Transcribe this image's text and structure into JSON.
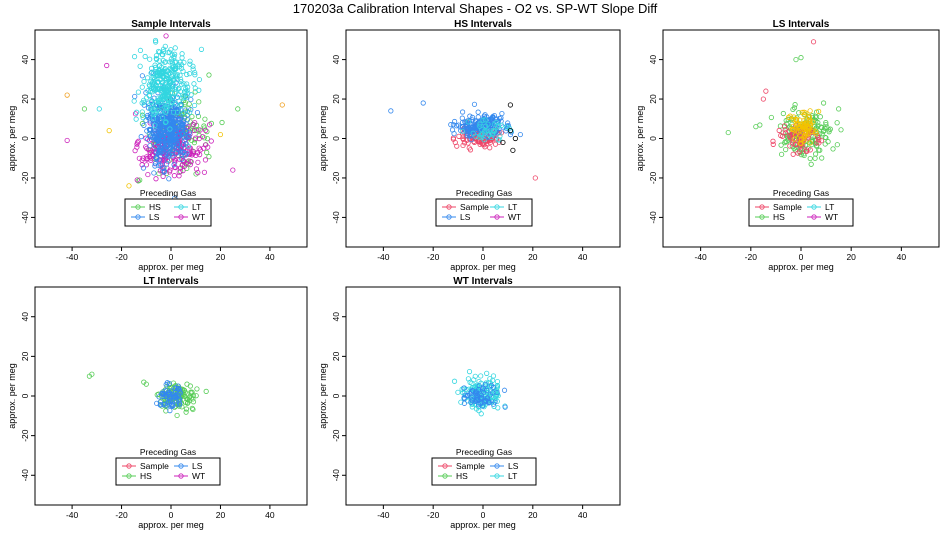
{
  "figure": {
    "title": "170203a   Calibration Interval Shapes - O2 vs. SP-WT Slope Diff"
  },
  "colors": {
    "Sample": "#ee4466",
    "HS": "#55cc55",
    "LS": "#3388ee",
    "LT": "#33d6e0",
    "WT": "#cc22bb",
    "other_yellow": "#f2c200",
    "other_orange": "#f0a020",
    "other_black": "#000000"
  },
  "chart_data": [
    {
      "type": "scatter",
      "title": "Sample Intervals",
      "xlabel": "approx. per meg",
      "ylabel": "approx. per meg",
      "xlim": [
        -55,
        55
      ],
      "ylim": [
        -55,
        55
      ],
      "xticks": [
        -40,
        -20,
        0,
        20,
        40
      ],
      "yticks": [
        -40,
        -20,
        0,
        20,
        40
      ],
      "legend": {
        "title": "Preceding Gas",
        "entries": [
          "HS",
          "LT",
          "LS",
          "WT"
        ]
      },
      "series": [
        {
          "name": "HS",
          "color": "#55cc55",
          "cluster": {
            "center": [
              3,
              2
            ],
            "spread": [
              6,
              9
            ],
            "n": 160
          }
        },
        {
          "name": "WT",
          "color": "#cc22bb",
          "cluster": {
            "center": [
              0,
              -5
            ],
            "spread": [
              7,
              7
            ],
            "n": 230
          }
        },
        {
          "name": "LS",
          "color": "#3388ee",
          "cluster": {
            "center": [
              -2,
              5
            ],
            "spread": [
              4,
              9
            ],
            "n": 420
          }
        },
        {
          "name": "LT",
          "color": "#33d6e0",
          "cluster": {
            "center": [
              -2,
              27
            ],
            "spread": [
              5,
              9
            ],
            "n": 300
          }
        }
      ],
      "extra_points": [
        {
          "x": -42,
          "y": 22,
          "color": "#f0a020"
        },
        {
          "x": 45,
          "y": 17,
          "color": "#f0a020"
        },
        {
          "x": -42,
          "y": -1,
          "color": "#cc22bb"
        },
        {
          "x": -26,
          "y": 37,
          "color": "#cc22bb"
        },
        {
          "x": -35,
          "y": 15,
          "color": "#55cc55"
        },
        {
          "x": -29,
          "y": 15,
          "color": "#33d6e0"
        },
        {
          "x": -17,
          "y": -24,
          "color": "#f2c200"
        },
        {
          "x": 25,
          "y": -16,
          "color": "#cc22bb"
        },
        {
          "x": 27,
          "y": 15,
          "color": "#55cc55"
        },
        {
          "x": -25,
          "y": 4,
          "color": "#f2c200"
        },
        {
          "x": 20,
          "y": 2,
          "color": "#f2c200"
        },
        {
          "x": -10,
          "y": -37,
          "color": "#f2c200"
        },
        {
          "x": -2,
          "y": 52,
          "color": "#cc22bb"
        }
      ]
    },
    {
      "type": "scatter",
      "title": "HS Intervals",
      "xlabel": "approx. per meg",
      "ylabel": "approx. per meg",
      "xlim": [
        -55,
        55
      ],
      "ylim": [
        -55,
        55
      ],
      "xticks": [
        -40,
        -20,
        0,
        20,
        40
      ],
      "yticks": [
        -40,
        -20,
        0,
        20,
        40
      ],
      "legend": {
        "title": "Preceding Gas",
        "entries": [
          "Sample",
          "LT",
          "LS",
          "WT"
        ]
      },
      "series": [
        {
          "name": "Sample",
          "color": "#ee4466",
          "cluster": {
            "center": [
              -2,
              1
            ],
            "spread": [
              5,
              3
            ],
            "n": 120
          }
        },
        {
          "name": "LS",
          "color": "#3388ee",
          "cluster": {
            "center": [
              0,
              6
            ],
            "spread": [
              5,
              3
            ],
            "n": 170
          }
        },
        {
          "name": "LT",
          "color": "#33d6e0",
          "cluster": {
            "center": [
              2,
              4
            ],
            "spread": [
              5,
              4
            ],
            "n": 40
          }
        }
      ],
      "extra_points": [
        {
          "x": -37,
          "y": 14,
          "color": "#3388ee"
        },
        {
          "x": -24,
          "y": 18,
          "color": "#3388ee"
        },
        {
          "x": 11,
          "y": 17,
          "color": "#000000"
        },
        {
          "x": 11,
          "y": 4,
          "color": "#000000"
        },
        {
          "x": 8,
          "y": -2,
          "color": "#000000"
        },
        {
          "x": 12,
          "y": -6,
          "color": "#000000"
        },
        {
          "x": 13,
          "y": 0,
          "color": "#000000"
        },
        {
          "x": 21,
          "y": -20,
          "color": "#ee4466"
        },
        {
          "x": 15,
          "y": 2,
          "color": "#3388ee"
        }
      ]
    },
    {
      "type": "scatter",
      "title": "LS Intervals",
      "xlabel": "approx. per meg",
      "ylabel": "approx. per meg",
      "xlim": [
        -55,
        55
      ],
      "ylim": [
        -55,
        55
      ],
      "xticks": [
        -40,
        -20,
        0,
        20,
        40
      ],
      "yticks": [
        -40,
        -20,
        0,
        20,
        40
      ],
      "legend": {
        "title": "Preceding Gas",
        "entries": [
          "Sample",
          "LT",
          "HS",
          "WT"
        ]
      },
      "series": [
        {
          "name": "HS",
          "color": "#55cc55",
          "cluster": {
            "center": [
              1,
              2
            ],
            "spread": [
              6,
              6
            ],
            "n": 150
          }
        },
        {
          "name": "Sample",
          "color": "#ee4466",
          "cluster": {
            "center": [
              -1,
              0
            ],
            "spread": [
              4,
              4
            ],
            "n": 70
          }
        },
        {
          "name": "other",
          "color": "#f2c200",
          "cluster": {
            "center": [
              1,
              5
            ],
            "spread": [
              3,
              4
            ],
            "n": 80
          }
        }
      ],
      "extra_points": [
        {
          "x": 5,
          "y": 49,
          "color": "#ee4466"
        },
        {
          "x": 0,
          "y": 41,
          "color": "#55cc55"
        },
        {
          "x": -2,
          "y": 40,
          "color": "#55cc55"
        },
        {
          "x": -14,
          "y": 24,
          "color": "#ee4466"
        },
        {
          "x": -15,
          "y": 20,
          "color": "#ee4466"
        },
        {
          "x": -29,
          "y": 3,
          "color": "#55cc55"
        },
        {
          "x": -18,
          "y": 6,
          "color": "#55cc55"
        },
        {
          "x": 15,
          "y": 15,
          "color": "#55cc55"
        },
        {
          "x": 9,
          "y": 18,
          "color": "#55cc55"
        }
      ]
    },
    {
      "type": "scatter",
      "title": "LT Intervals",
      "xlabel": "approx. per meg",
      "ylabel": "approx. per meg",
      "xlim": [
        -55,
        55
      ],
      "ylim": [
        -55,
        55
      ],
      "xticks": [
        -40,
        -20,
        0,
        20,
        40
      ],
      "yticks": [
        -40,
        -20,
        0,
        20,
        40
      ],
      "legend": {
        "title": "Preceding Gas",
        "entries": [
          "Sample",
          "LS",
          "HS",
          "WT"
        ]
      },
      "series": [
        {
          "name": "HS",
          "color": "#55cc55",
          "cluster": {
            "center": [
              2,
              0
            ],
            "spread": [
              4,
              3
            ],
            "n": 110
          }
        },
        {
          "name": "LS",
          "color": "#3388ee",
          "cluster": {
            "center": [
              0,
              0
            ],
            "spread": [
              3,
              3
            ],
            "n": 70
          }
        }
      ],
      "extra_points": [
        {
          "x": -33,
          "y": 10,
          "color": "#55cc55"
        },
        {
          "x": -32,
          "y": 11,
          "color": "#55cc55"
        },
        {
          "x": -11,
          "y": 7,
          "color": "#55cc55"
        },
        {
          "x": -10,
          "y": 6,
          "color": "#55cc55"
        }
      ]
    },
    {
      "type": "scatter",
      "title": "WT Intervals",
      "xlabel": "approx. per meg",
      "ylabel": "approx. per meg",
      "xlim": [
        -55,
        55
      ],
      "ylim": [
        -55,
        55
      ],
      "xticks": [
        -40,
        -20,
        0,
        20,
        40
      ],
      "yticks": [
        -40,
        -20,
        0,
        20,
        40
      ],
      "legend": {
        "title": "Preceding Gas",
        "entries": [
          "Sample",
          "LS",
          "HS",
          "LT"
        ]
      },
      "series": [
        {
          "name": "LT",
          "color": "#33d6e0",
          "cluster": {
            "center": [
              0,
              1
            ],
            "spread": [
              4,
              4
            ],
            "n": 140
          }
        },
        {
          "name": "LS",
          "color": "#3388ee",
          "cluster": {
            "center": [
              -1,
              0
            ],
            "spread": [
              3,
              3
            ],
            "n": 60
          }
        }
      ],
      "extra_points": []
    }
  ]
}
